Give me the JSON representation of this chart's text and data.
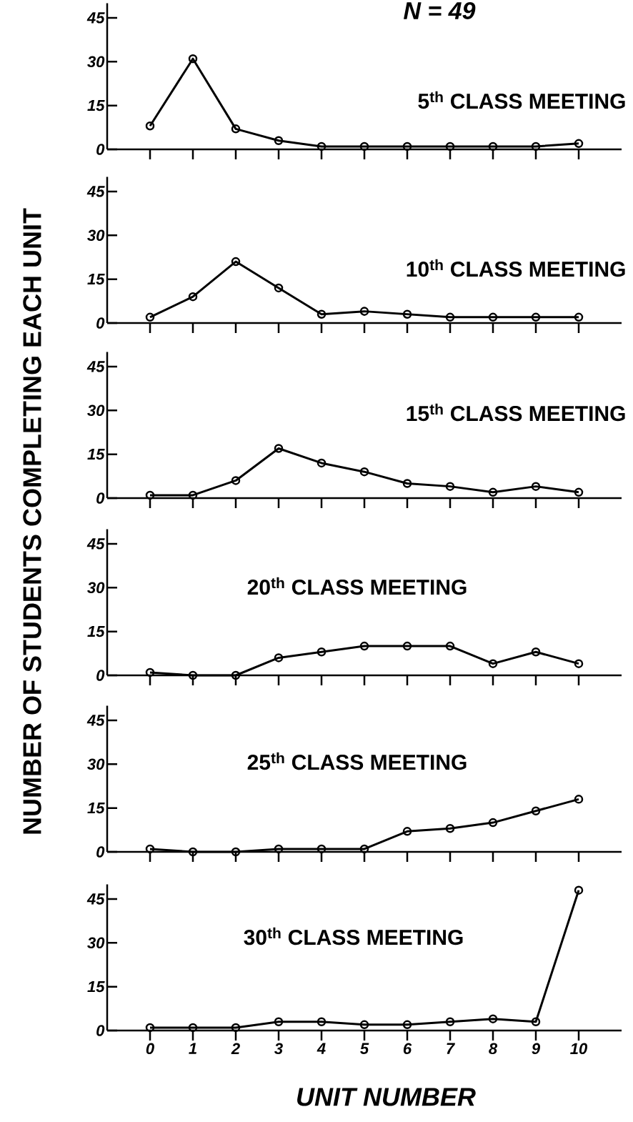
{
  "chart_data": [
    {
      "type": "line",
      "title": "5$^{th}$ CLASS MEETING",
      "annotations": [
        "N = 49"
      ],
      "ylabel": "NUMBER OF STUDENTS COMPLETING EACH UNIT",
      "x": [
        0,
        1,
        2,
        3,
        4,
        5,
        6,
        7,
        8,
        9,
        10
      ],
      "values": [
        8,
        31,
        7,
        3,
        1,
        1,
        1,
        1,
        1,
        1,
        2
      ],
      "color": "#000000",
      "marker": "circle",
      "xlim": [
        -1,
        11
      ],
      "ylim": [
        0,
        50
      ],
      "xticks": [
        0,
        1,
        2,
        3,
        4,
        5,
        6,
        7,
        8,
        9,
        10
      ],
      "yticks": [
        0,
        15,
        30,
        45
      ],
      "tick_labels": "y"
    },
    {
      "type": "line",
      "title": "10$^{th}$ CLASS MEETING",
      "x": [
        0,
        1,
        2,
        3,
        4,
        5,
        6,
        7,
        8,
        9,
        10
      ],
      "values": [
        2,
        9,
        21,
        12,
        3,
        4,
        3,
        2,
        2,
        2,
        2
      ],
      "color": "#000000",
      "marker": "circle",
      "xlim": [
        -1,
        11
      ],
      "ylim": [
        0,
        50
      ],
      "xticks": [
        0,
        1,
        2,
        3,
        4,
        5,
        6,
        7,
        8,
        9,
        10
      ],
      "yticks": [
        0,
        15,
        30,
        45
      ],
      "tick_labels": "y"
    },
    {
      "type": "line",
      "title": "15$^{th}$ CLASS MEETING",
      "x": [
        0,
        1,
        2,
        3,
        4,
        5,
        6,
        7,
        8,
        9,
        10
      ],
      "values": [
        1,
        1,
        6,
        17,
        12,
        9,
        5,
        4,
        2,
        4,
        2
      ],
      "color": "#000000",
      "marker": "circle",
      "xlim": [
        -1,
        11
      ],
      "ylim": [
        0,
        50
      ],
      "xticks": [
        0,
        1,
        2,
        3,
        4,
        5,
        6,
        7,
        8,
        9,
        10
      ],
      "yticks": [
        0,
        15,
        30,
        45
      ],
      "tick_labels": "y"
    },
    {
      "type": "line",
      "title": "20$^{th}$ CLASS MEETING",
      "x": [
        0,
        1,
        2,
        3,
        4,
        5,
        6,
        7,
        8,
        9,
        10
      ],
      "values": [
        1,
        0,
        0,
        6,
        8,
        10,
        10,
        10,
        4,
        8,
        4
      ],
      "color": "#000000",
      "marker": "circle",
      "xlim": [
        -1,
        11
      ],
      "ylim": [
        0,
        50
      ],
      "xticks": [
        0,
        1,
        2,
        3,
        4,
        5,
        6,
        7,
        8,
        9,
        10
      ],
      "yticks": [
        0,
        15,
        30,
        45
      ],
      "tick_labels": "y"
    },
    {
      "type": "line",
      "title": "25$^{th}$ CLASS MEETING",
      "x": [
        0,
        1,
        2,
        3,
        4,
        5,
        6,
        7,
        8,
        9,
        10
      ],
      "values": [
        1,
        0,
        0,
        1,
        1,
        1,
        7,
        8,
        10,
        14,
        18
      ],
      "color": "#000000",
      "marker": "circle",
      "xlim": [
        -1,
        11
      ],
      "ylim": [
        0,
        50
      ],
      "xticks": [
        0,
        1,
        2,
        3,
        4,
        5,
        6,
        7,
        8,
        9,
        10
      ],
      "yticks": [
        0,
        15,
        30,
        45
      ],
      "tick_labels": "y"
    },
    {
      "type": "line",
      "title": "30$^{th}$ CLASS MEETING",
      "xlabel": "UNIT NUMBER",
      "x": [
        0,
        1,
        2,
        3,
        4,
        5,
        6,
        7,
        8,
        9,
        10
      ],
      "values": [
        1,
        1,
        1,
        3,
        3,
        2,
        2,
        3,
        4,
        3,
        48
      ],
      "color": "#000000",
      "marker": "circle",
      "xlim": [
        -1,
        11
      ],
      "ylim": [
        0,
        50
      ],
      "xticks": [
        0,
        1,
        2,
        3,
        4,
        5,
        6,
        7,
        8,
        9,
        10
      ],
      "yticks": [
        0,
        15,
        30,
        45
      ]
    }
  ]
}
